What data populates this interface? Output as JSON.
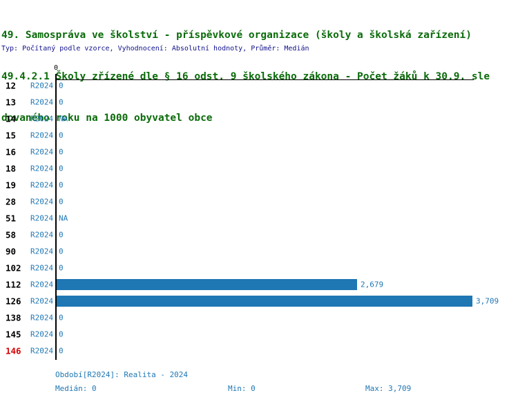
{
  "title": {
    "line1": "49. Samospráva ve školství - příspěvkové organizace (školy a školská zařízení)",
    "line2": "49.4.2.1 Školy zřízené dle § 16 odst. 9 školského zákona - Počet žáků k 30.9. sle",
    "line3": "dovaného roku na 1000 obyvatel obce"
  },
  "meta": "Typ: Počítaný podle vzorce, Vyhodnocení: Absolutní hodnoty, Průměr: Medián",
  "colors": {
    "title_green": "#0a6b0a",
    "meta_navy": "#10108c",
    "accent_blue": "#1f77b4",
    "highlight_red": "#d60000"
  },
  "chart_data": {
    "type": "bar",
    "orientation": "horizontal",
    "title": "49.4.2.1 Školy zřízené dle § 16 odst. 9 školského zákona - Počet žáků k 30.9. sledovaného roku na 1000 obyvatel obce",
    "series_label": "R2024",
    "axis_tick_label": "0",
    "categories": [
      "12",
      "13",
      "14",
      "15",
      "16",
      "18",
      "19",
      "28",
      "51",
      "58",
      "90",
      "102",
      "112",
      "126",
      "138",
      "145",
      "146"
    ],
    "values": [
      0,
      0,
      null,
      0,
      0,
      0,
      0,
      0,
      null,
      0,
      0,
      0,
      2679,
      3709,
      0,
      0,
      0
    ],
    "display_values": [
      "0",
      "0",
      "NA",
      "0",
      "0",
      "0",
      "0",
      "0",
      "NA",
      "0",
      "0",
      "0",
      "2,679",
      "3,709",
      "0",
      "0",
      "0"
    ],
    "xlim": [
      0,
      3709
    ],
    "highlighted_category": "146",
    "grid": false,
    "legend_position": "none"
  },
  "footer": {
    "period": "Období[R2024]: Realita - 2024",
    "median": "Medián: 0",
    "min": "Min: 0",
    "max": "Max: 3,709"
  }
}
